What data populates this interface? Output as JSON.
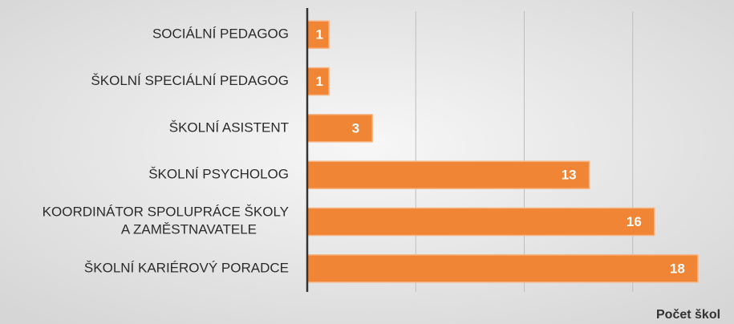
{
  "chart_data": {
    "type": "barh",
    "categories": [
      "SOCIÁLNÍ PEDAGOG",
      "ŠKOLNÍ SPECIÁLNÍ PEDAGOG",
      "ŠKOLNÍ ASISTENT",
      "ŠKOLNÍ PSYCHOLOG",
      "KOORDINÁTOR SPOLUPRÁCE ŠKOLY\nA ZAMĚSTNAVATELE",
      "ŠKOLNÍ KARIÉROVÝ PORADCE"
    ],
    "values": [
      1,
      1,
      3,
      13,
      16,
      18
    ],
    "color": "#ef8535",
    "xlim": [
      0,
      20
    ],
    "xticks": [
      5,
      10,
      15
    ],
    "grid": true,
    "x_label": "Počet škol"
  }
}
